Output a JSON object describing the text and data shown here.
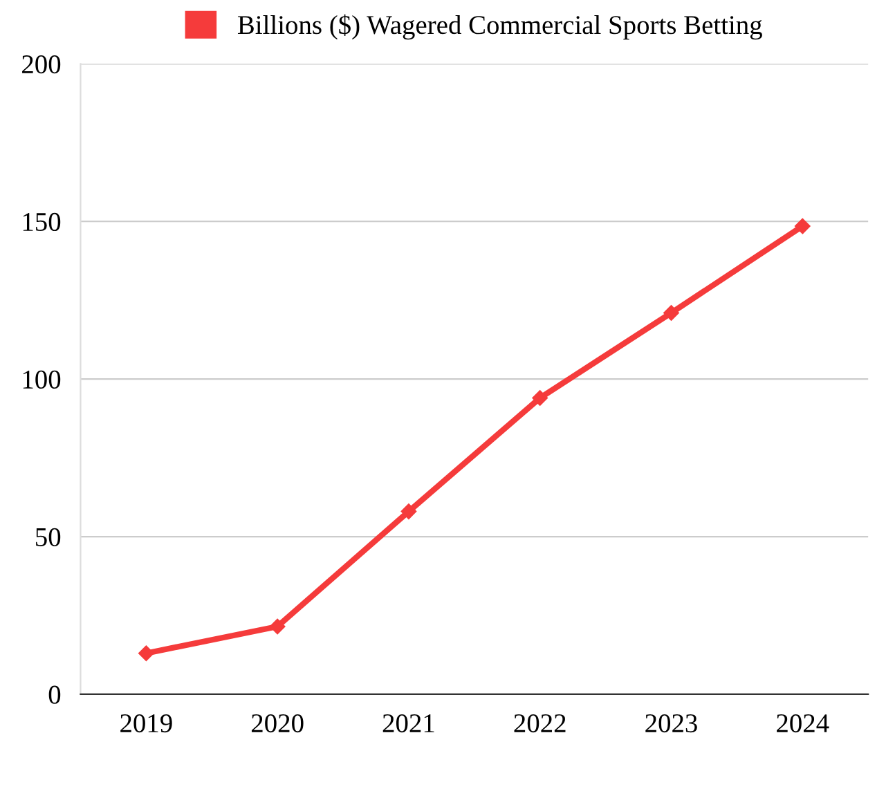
{
  "chart_data": {
    "type": "line",
    "categories": [
      "2019",
      "2020",
      "2021",
      "2022",
      "2023",
      "2024"
    ],
    "series": [
      {
        "name": "Billions ($) Wagered Commercial Sports Betting",
        "color": "#f53b3b",
        "values": [
          13,
          21.5,
          58,
          94,
          121,
          148.5
        ]
      }
    ],
    "ylim": [
      0,
      200
    ],
    "yticks": [
      0,
      50,
      100,
      150,
      200
    ],
    "grid": "y",
    "legend": "top",
    "marker": "diamond",
    "line_style": "solid"
  }
}
